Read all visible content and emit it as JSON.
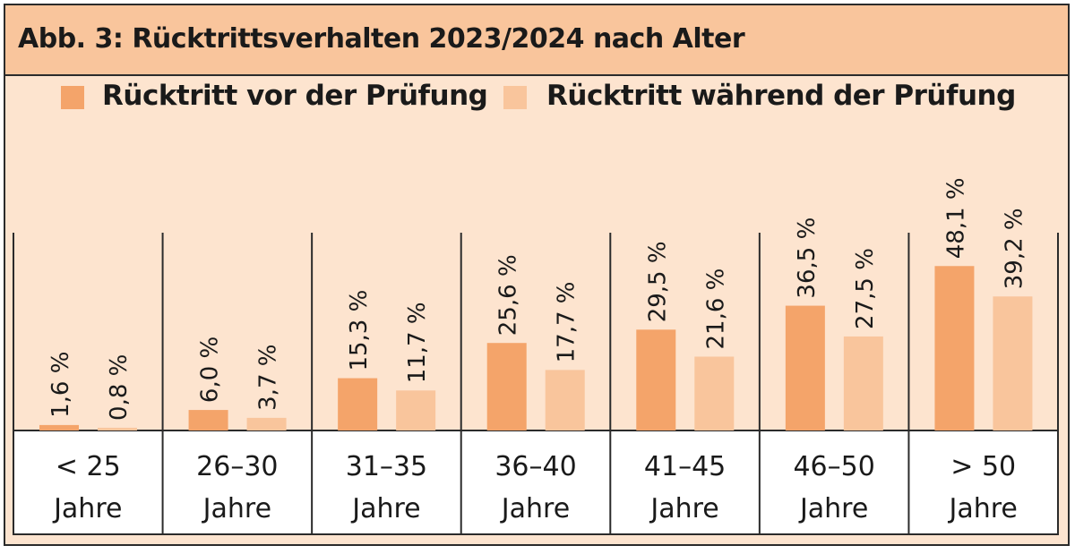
{
  "chart_data": {
    "type": "bar",
    "title": "Abb. 3: Rücktrittsverhalten 2023/2024 nach Alter",
    "categories": [
      {
        "line1": "< 25",
        "line2": "Jahre"
      },
      {
        "line1": "26–30",
        "line2": "Jahre"
      },
      {
        "line1": "31–35",
        "line2": "Jahre"
      },
      {
        "line1": "36–40",
        "line2": "Jahre"
      },
      {
        "line1": "41–45",
        "line2": "Jahre"
      },
      {
        "line1": "46–50",
        "line2": "Jahre"
      },
      {
        "line1": "> 50",
        "line2": "Jahre"
      }
    ],
    "series": [
      {
        "name": "Rücktritt vor der Prüfung",
        "color": "#f4a46a",
        "values": [
          1.6,
          6.0,
          15.3,
          25.6,
          29.5,
          36.5,
          48.1
        ],
        "labels": [
          "1,6 %",
          "6,0 %",
          "15,3 %",
          "25,6 %",
          "29,5 %",
          "36,5 %",
          "48,1 %"
        ]
      },
      {
        "name": "Rücktritt während der Prüfung",
        "color": "#f9c59c",
        "values": [
          0.8,
          3.7,
          11.7,
          17.7,
          21.6,
          27.5,
          39.2
        ],
        "labels": [
          "0,8 %",
          "3,7 %",
          "11,7 %",
          "17,7 %",
          "21,6 %",
          "27,5 %",
          "39,2 %"
        ]
      }
    ],
    "xlabel": "",
    "ylabel": "",
    "ylim": [
      0,
      100
    ],
    "grid": false,
    "legend_position": "top"
  },
  "colors": {
    "background": "#fde4cf",
    "title_bar": "#f9c59c",
    "border": "#2b2b2b",
    "text": "#1a1a1a"
  }
}
